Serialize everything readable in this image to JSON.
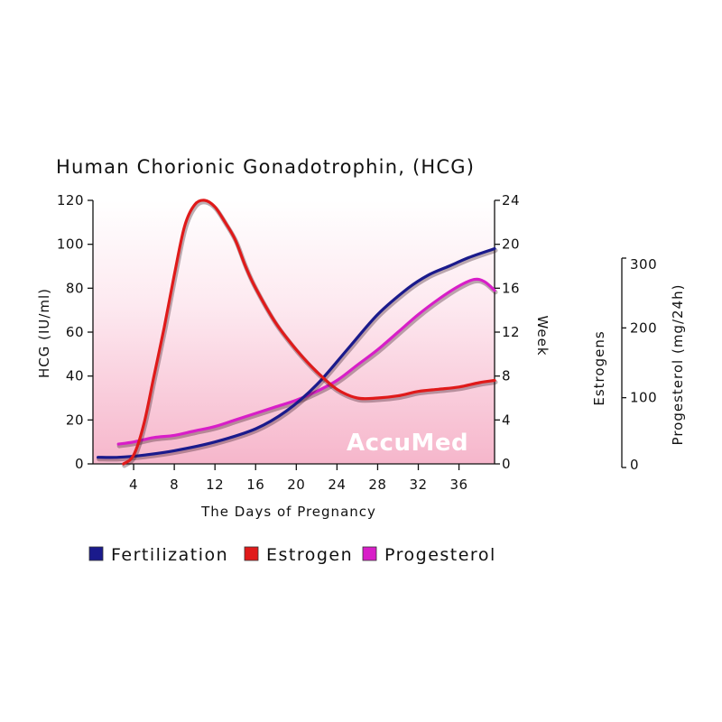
{
  "chart_data": {
    "type": "line",
    "title": "Human Chorionic Gonadotrophin, (HCG)",
    "xlabel": "The Days of Pregnancy",
    "ylabel_left": "HCG (IU/ml)",
    "ylabel_right": "Week",
    "ylabel_estrogens": "Estrogens",
    "ylabel_progesterol": "Progesterol (mg/24h)",
    "x_ticks": [
      "4",
      "8",
      "12",
      "16",
      "20",
      "24",
      "28",
      "32",
      "36"
    ],
    "x_tick_values": [
      4,
      8,
      12,
      16,
      20,
      24,
      28,
      32,
      36
    ],
    "xlim": [
      0,
      39.5
    ],
    "ylim_left": [
      0,
      120
    ],
    "y_ticks_left": [
      "0",
      "20",
      "40",
      "60",
      "80",
      "100",
      "120"
    ],
    "y_ticks_right": [
      "0",
      "4",
      "8",
      "12",
      "16",
      "20",
      "24"
    ],
    "y_ticks_estrogens": [
      "0",
      "100",
      "200",
      "300"
    ],
    "grid": false,
    "legend_position": "bottom",
    "watermark": "AccuMed",
    "series": [
      {
        "name": "Fertilization",
        "color": "#1a1a8c",
        "x": [
          0.5,
          2.5,
          5,
          8,
          12,
          16,
          19,
          22,
          25,
          28,
          31,
          33,
          35,
          37,
          39.5
        ],
        "y": [
          3,
          3,
          4,
          6,
          10,
          16,
          24,
          36,
          52,
          68,
          80,
          86,
          90,
          94,
          98
        ]
      },
      {
        "name": "Estrogen",
        "color": "#e01a1a",
        "x": [
          3,
          4,
          5,
          6,
          7,
          8,
          9,
          10,
          11,
          12,
          13,
          14,
          15,
          16,
          18,
          20,
          22,
          24,
          26,
          28,
          30,
          32,
          34,
          36,
          38,
          39.5
        ],
        "y": [
          0,
          4,
          18,
          40,
          62,
          86,
          108,
          118,
          120,
          117,
          110,
          102,
          90,
          80,
          64,
          52,
          42,
          34,
          30,
          30,
          31,
          33,
          34,
          35,
          37,
          38
        ]
      },
      {
        "name": "Progesterol",
        "color": "#d81ec8",
        "x": [
          2.5,
          4,
          6,
          8,
          10,
          12,
          14,
          16,
          18,
          20,
          22,
          24,
          26,
          28,
          30,
          32,
          34,
          36,
          37.5,
          38.5,
          39.5
        ],
        "y": [
          9,
          10,
          12,
          13,
          15,
          17,
          20,
          23,
          26,
          29,
          33,
          38,
          45,
          52,
          60,
          68,
          75,
          81,
          84,
          83,
          79
        ]
      }
    ]
  }
}
